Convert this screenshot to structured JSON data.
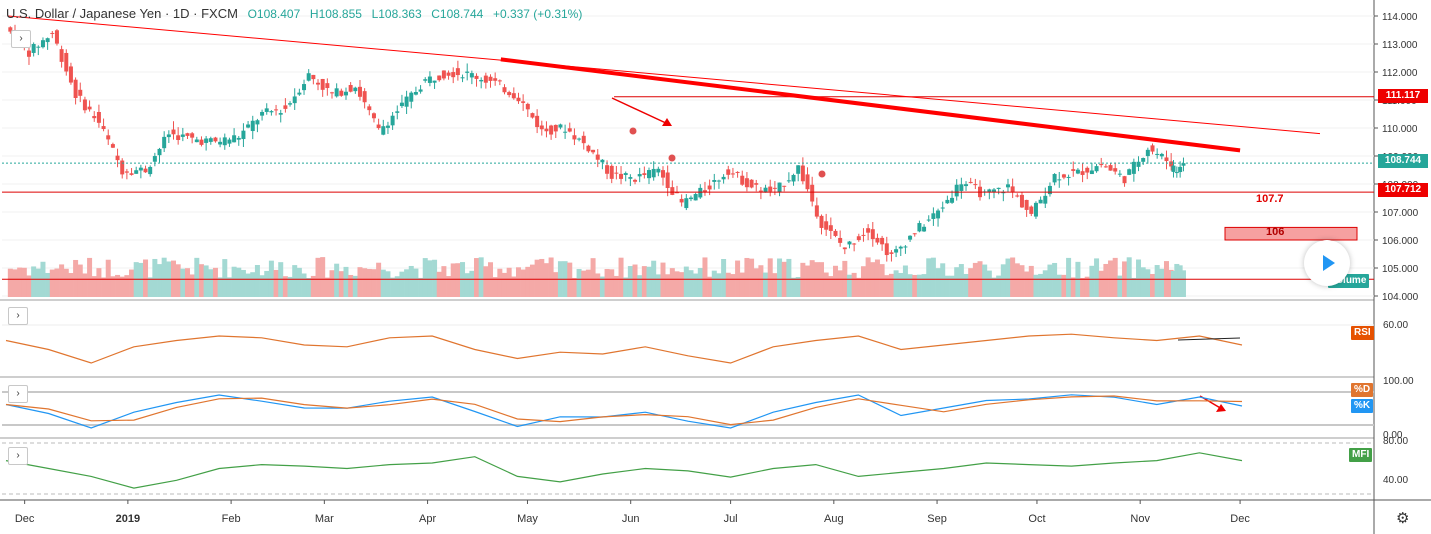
{
  "header": {
    "symbol": "U.S. Dollar / Japanese Yen · 1D · FXCM",
    "open": "O108.407",
    "high": "H108.855",
    "low": "L108.363",
    "close": "C108.744",
    "change": "+0.337 (+0.31%)"
  },
  "colors": {
    "up": "#26a69a",
    "down": "#ef5350",
    "trend_line": "#ff0000",
    "rsi_line": "#e0752f",
    "stoch_k": "#2196f3",
    "stoch_d": "#e0752f",
    "mfi_line": "#43a047"
  },
  "price_axis": {
    "ticks": [
      "114.000",
      "113.000",
      "112.000",
      "111.000",
      "110.000",
      "109.000",
      "108.000",
      "107.000",
      "106.000",
      "105.000",
      "104.000"
    ],
    "tags": [
      {
        "label": "111.117",
        "color": "#ee0000"
      },
      {
        "label": "108.744",
        "color": "#26a69a"
      },
      {
        "label": "107.712",
        "color": "#ee0000"
      }
    ]
  },
  "annotations": {
    "level_107": "107.7",
    "level_106": "106"
  },
  "indicators": {
    "volume_label": "Volume",
    "rsi_label": "RSI",
    "rsi_tick": "60.00",
    "stoch_d_label": "%D",
    "stoch_k_label": "%K",
    "stoch_ticks": [
      "100.00",
      "0.00"
    ],
    "mfi_label": "MFI",
    "mfi_ticks": [
      "80.00",
      "40.00"
    ]
  },
  "time_axis": [
    "Dec",
    "2019",
    "Feb",
    "Mar",
    "Apr",
    "May",
    "Jun",
    "Jul",
    "Aug",
    "Sep",
    "Oct",
    "Nov",
    "Dec"
  ],
  "icons": {
    "expand": "chevron-right-icon",
    "play": "play-icon",
    "settings": "gear-icon"
  },
  "chart_data": {
    "type": "candlestick",
    "title": "U.S. Dollar / Japanese Yen · 1D · FXCM",
    "ylim": [
      104.0,
      114.4
    ],
    "x_range": [
      "2018-11-26",
      "2019-12-25"
    ],
    "weekly_close": [
      [
        "2018-11-26",
        113.6
      ],
      [
        "2018-12-03",
        112.7
      ],
      [
        "2018-12-10",
        113.4
      ],
      [
        "2018-12-17",
        111.2
      ],
      [
        "2018-12-24",
        110.2
      ],
      [
        "2018-12-31",
        108.5
      ],
      [
        "2019-01-07",
        108.5
      ],
      [
        "2019-01-14",
        109.8
      ],
      [
        "2019-01-21",
        109.6
      ],
      [
        "2019-01-28",
        109.5
      ],
      [
        "2019-02-04",
        109.7
      ],
      [
        "2019-02-11",
        110.5
      ],
      [
        "2019-02-18",
        110.7
      ],
      [
        "2019-02-25",
        111.9
      ],
      [
        "2019-03-04",
        111.2
      ],
      [
        "2019-03-11",
        111.5
      ],
      [
        "2019-03-18",
        109.9
      ],
      [
        "2019-03-25",
        110.8
      ],
      [
        "2019-04-01",
        111.7
      ],
      [
        "2019-04-08",
        112.0
      ],
      [
        "2019-04-15",
        111.9
      ],
      [
        "2019-04-22",
        111.6
      ],
      [
        "2019-04-29",
        111.1
      ],
      [
        "2019-05-06",
        109.9
      ],
      [
        "2019-05-13",
        110.0
      ],
      [
        "2019-05-20",
        109.3
      ],
      [
        "2019-05-27",
        108.3
      ],
      [
        "2019-06-03",
        108.2
      ],
      [
        "2019-06-10",
        108.5
      ],
      [
        "2019-06-17",
        107.3
      ],
      [
        "2019-06-24",
        107.8
      ],
      [
        "2019-07-01",
        108.5
      ],
      [
        "2019-07-08",
        107.9
      ],
      [
        "2019-07-15",
        107.7
      ],
      [
        "2019-07-22",
        108.6
      ],
      [
        "2019-07-29",
        106.6
      ],
      [
        "2019-08-05",
        105.7
      ],
      [
        "2019-08-12",
        106.4
      ],
      [
        "2019-08-19",
        105.4
      ],
      [
        "2019-08-26",
        106.3
      ],
      [
        "2019-09-02",
        107.0
      ],
      [
        "2019-09-09",
        108.1
      ],
      [
        "2019-09-16",
        107.6
      ],
      [
        "2019-09-23",
        107.9
      ],
      [
        "2019-09-30",
        106.9
      ],
      [
        "2019-10-07",
        108.3
      ],
      [
        "2019-10-14",
        108.4
      ],
      [
        "2019-10-21",
        108.7
      ],
      [
        "2019-10-28",
        108.2
      ],
      [
        "2019-11-04",
        109.3
      ],
      [
        "2019-11-11",
        108.744
      ]
    ],
    "horizontal_levels": [
      111.117,
      108.744,
      107.712,
      104.6
    ],
    "trend_lines": [
      {
        "from": [
          "2018-11-26",
          114.0
        ],
        "to": [
          "2019-12-25",
          109.8
        ]
      },
      {
        "from": [
          "2019-04-23",
          112.45
        ],
        "to": [
          "2019-12-01",
          109.2
        ]
      }
    ],
    "zones": [
      {
        "label": "106",
        "from": 106.0,
        "to": 106.45
      }
    ],
    "rsi": {
      "range": [
        20,
        80
      ],
      "approx": [
        55,
        45,
        30,
        48,
        55,
        60,
        58,
        50,
        48,
        58,
        60,
        45,
        35,
        42,
        40,
        48,
        38,
        30,
        48,
        55,
        60,
        45,
        50,
        55,
        60,
        62,
        58,
        55,
        60,
        50
      ]
    },
    "mfi": {
      "range": [
        20,
        90
      ],
      "approx": [
        65,
        55,
        45,
        30,
        40,
        55,
        60,
        58,
        55,
        60,
        62,
        70,
        45,
        38,
        48,
        55,
        52,
        44,
        55,
        60,
        45,
        50,
        55,
        62,
        60,
        58,
        62,
        65,
        75,
        65
      ]
    }
  }
}
